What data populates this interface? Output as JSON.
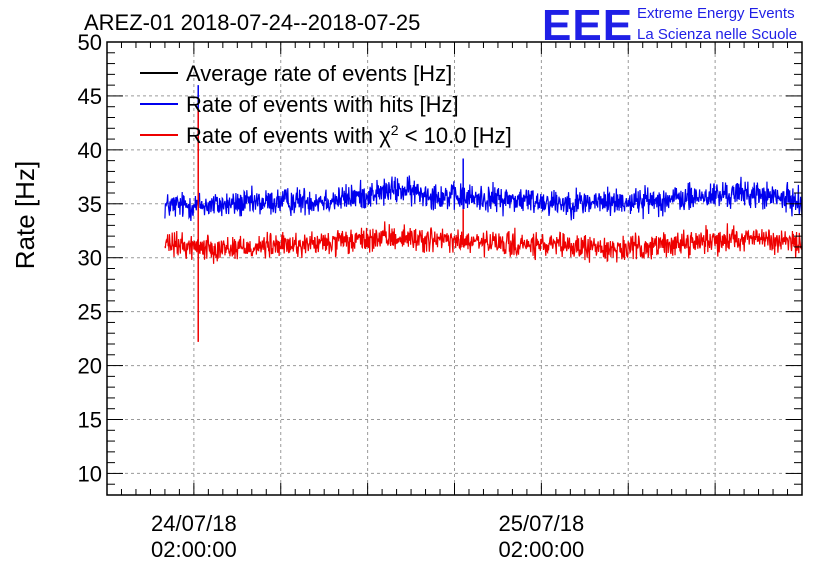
{
  "header": {
    "title": "AREZ-01 2018-07-24--2018-07-25",
    "logo_mark": "EEE",
    "logo_line1": "Extreme Energy Events",
    "logo_line2": "La Scienza nelle Scuole"
  },
  "colors": {
    "average": "#000000",
    "hits": "#0000ee",
    "chi2": "#ee0000",
    "logo": "#1f1fe6"
  },
  "chart_data": {
    "type": "line",
    "title": "AREZ-01 2018-07-24--2018-07-25",
    "ylabel": "Rate [Hz]",
    "xlabel": "",
    "ylim": [
      8,
      50
    ],
    "yticks": [
      10,
      15,
      20,
      25,
      30,
      35,
      40,
      45,
      50
    ],
    "ytick_labels": [
      "10",
      "15",
      "20",
      "25",
      "30",
      "35",
      "40",
      "45",
      "50"
    ],
    "x_unit": "hours since 2018-07-23 22:00",
    "xlim": [
      0,
      48
    ],
    "xticks": [
      {
        "x": 6,
        "line1": "24/07/18",
        "line2": "02:00:00"
      },
      {
        "x": 30,
        "line1": "25/07/18",
        "line2": "02:00:00"
      }
    ],
    "grid": true,
    "legend_position": "top-left",
    "legend": [
      {
        "key": "average",
        "label": "Average rate of events [Hz]"
      },
      {
        "key": "hits",
        "label": "Rate of events with hits [Hz]"
      },
      {
        "key": "chi2",
        "label_prefix": "Rate of events with ",
        "label_symbol": "χ",
        "label_sup": "2",
        "label_suffix": " < 10.0 [Hz]"
      }
    ],
    "series": [
      {
        "name": "Rate of events with hits [Hz]",
        "key": "hits",
        "x_range": [
          4,
          49
        ],
        "profile_x": [
          4,
          8,
          12,
          16,
          20,
          24,
          28,
          32,
          36,
          40,
          44,
          49
        ],
        "profile_y": [
          34.8,
          34.9,
          35.2,
          35.4,
          36.3,
          35.6,
          35.4,
          35.1,
          35.2,
          35.5,
          36.0,
          35.0
        ],
        "noise_amplitude": 1.1,
        "spikes": [
          {
            "x": 6.3,
            "y_min": 40.6,
            "y_max": 46.0
          },
          {
            "x": 24.6,
            "y_min": 34.5,
            "y_max": 39.2
          }
        ]
      },
      {
        "name": "Rate of events with χ2 < 10.0 [Hz]",
        "key": "chi2",
        "x_range": [
          4,
          49
        ],
        "profile_x": [
          4,
          8,
          12,
          16,
          20,
          24,
          28,
          32,
          36,
          40,
          44,
          49
        ],
        "profile_y": [
          31.2,
          30.9,
          31.1,
          31.4,
          31.9,
          31.5,
          31.2,
          31.0,
          30.8,
          31.4,
          31.9,
          31.1
        ],
        "noise_amplitude": 1.0,
        "spikes": [
          {
            "x": 6.3,
            "y_min": 22.2,
            "y_max": 43.8
          },
          {
            "x": 24.6,
            "y_min": 31.0,
            "y_max": 34.5
          }
        ]
      }
    ]
  }
}
